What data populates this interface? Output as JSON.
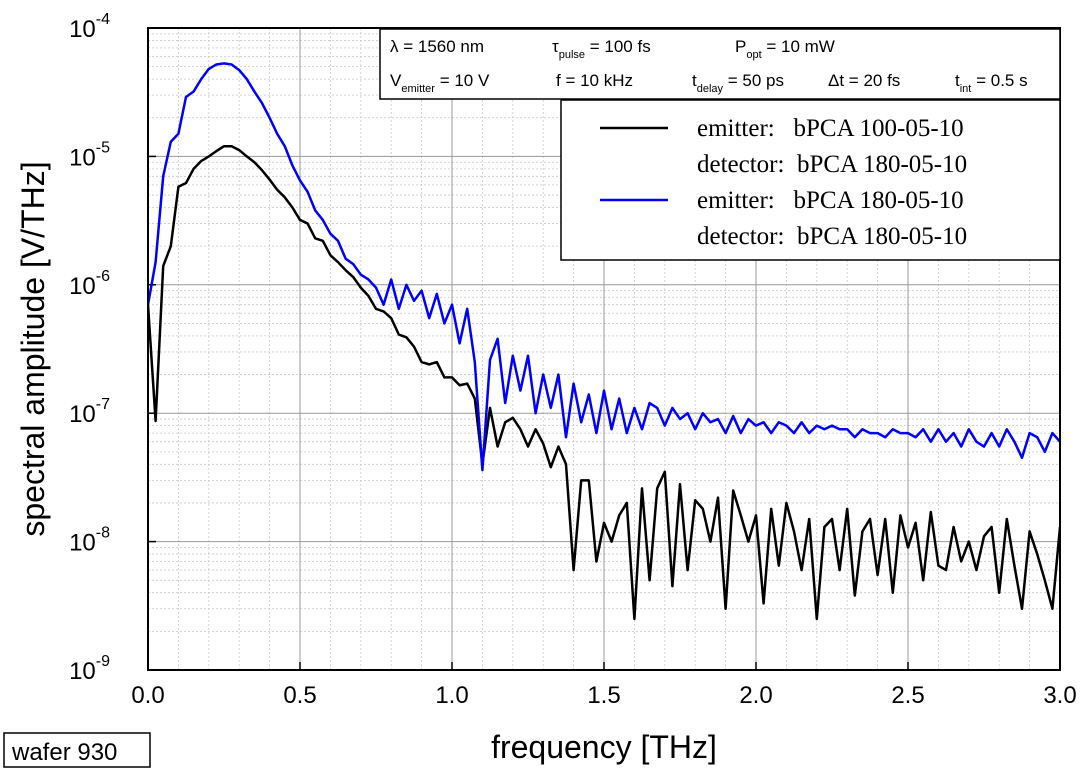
{
  "chart_data": {
    "type": "line",
    "xlabel": "frequency [THz]",
    "ylabel": "spectral amplitude [V/THz]",
    "footnote": "wafer 930",
    "log_y": true,
    "grid": true,
    "legend_position": "upper right",
    "xlim": [
      0,
      3.0
    ],
    "ylim": [
      1e-09,
      0.0001
    ],
    "xticks": [
      {
        "value": 0,
        "label": "0.0"
      },
      0.5,
      {
        "value": 1,
        "label": "1.0"
      },
      1.5,
      {
        "value": 2,
        "label": "2.0"
      },
      2.5,
      {
        "value": 3,
        "label": "3.0"
      }
    ],
    "yticks": [
      {
        "value": 1e-09,
        "label": "10",
        "exponent": "-9"
      },
      {
        "value": 1e-08,
        "label": "10",
        "exponent": "-8"
      },
      {
        "value": 1e-07,
        "label": "10",
        "exponent": "-7"
      },
      {
        "value": 1e-06,
        "label": "10",
        "exponent": "-6"
      },
      {
        "value": 1e-05,
        "label": "10",
        "exponent": "-5"
      },
      {
        "value": 0.0001,
        "label": "10",
        "exponent": "-4"
      }
    ],
    "annotations": [
      {
        "main": "λ = 1560 nm"
      },
      {
        "main": "τ",
        "sub": "pulse",
        "rest": " = 100 fs"
      },
      {
        "main": "P",
        "sub": "opt",
        "rest": " = 10 mW"
      },
      {
        "main": "V",
        "sub": "emitter",
        "rest": " = 10 V"
      },
      {
        "main": "f = 10 kHz"
      },
      {
        "main": "t",
        "sub": "delay",
        "rest": " = 50 ps"
      },
      {
        "main": "Δt = 20 fs"
      },
      {
        "main": "t",
        "sub": "int",
        "rest": " = 0.5 s"
      }
    ],
    "x": [
      0,
      0.025,
      0.05,
      0.075,
      0.1,
      0.125,
      0.15,
      0.175,
      0.2,
      0.225,
      0.25,
      0.275,
      0.3,
      0.325,
      0.35,
      0.375,
      0.4,
      0.425,
      0.45,
      0.475,
      0.5,
      0.525,
      0.55,
      0.575,
      0.6,
      0.625,
      0.65,
      0.675,
      0.7,
      0.725,
      0.75,
      0.775,
      0.8,
      0.825,
      0.85,
      0.875,
      0.9,
      0.925,
      0.95,
      0.975,
      1.0,
      1.025,
      1.05,
      1.075,
      1.1,
      1.125,
      1.15,
      1.175,
      1.2,
      1.225,
      1.25,
      1.275,
      1.3,
      1.325,
      1.35,
      1.375,
      1.4,
      1.425,
      1.45,
      1.475,
      1.5,
      1.525,
      1.55,
      1.575,
      1.6,
      1.625,
      1.65,
      1.675,
      1.7,
      1.725,
      1.75,
      1.775,
      1.8,
      1.825,
      1.85,
      1.875,
      1.9,
      1.925,
      1.95,
      1.975,
      2.0,
      2.025,
      2.05,
      2.075,
      2.1,
      2.125,
      2.15,
      2.175,
      2.2,
      2.225,
      2.25,
      2.275,
      2.3,
      2.325,
      2.35,
      2.375,
      2.4,
      2.425,
      2.45,
      2.475,
      2.5,
      2.525,
      2.55,
      2.575,
      2.6,
      2.625,
      2.65,
      2.675,
      2.7,
      2.725,
      2.75,
      2.775,
      2.8,
      2.825,
      2.85,
      2.875,
      2.9,
      2.925,
      2.95,
      2.975,
      3.0
    ],
    "series": [
      {
        "name": "emitter:   bPCA 100-05-10",
        "detector": "detector:  bPCA 180-05-10",
        "color": "#000000",
        "values": [
          7e-07,
          8.7e-08,
          1.4e-06,
          2e-06,
          5.8e-06,
          6.2e-06,
          8e-06,
          9.2e-06,
          1e-05,
          1.1e-05,
          1.2e-05,
          1.2e-05,
          1.12e-05,
          1e-05,
          9e-06,
          7.8e-06,
          6.6e-06,
          5.5e-06,
          4.8e-06,
          4e-06,
          3.2e-06,
          3e-06,
          2.3e-06,
          2.2e-06,
          1.7e-06,
          1.5e-06,
          1.3e-06,
          1.15e-06,
          9.5e-07,
          8.2e-07,
          6.5e-07,
          6.2e-07,
          5.5e-07,
          4.1e-07,
          3.9e-07,
          3.3e-07,
          2.5e-07,
          2.4e-07,
          2.5e-07,
          1.9e-07,
          1.9e-07,
          1.65e-07,
          1.7e-07,
          1.3e-07,
          4e-08,
          1.1e-07,
          5.5e-08,
          8.5e-08,
          9.2e-08,
          7.5e-08,
          5.5e-08,
          7.5e-08,
          5.8e-08,
          3.8e-08,
          5.5e-08,
          4e-08,
          6e-09,
          3e-08,
          3e-08,
          7e-09,
          1.4e-08,
          1e-08,
          1.6e-08,
          2e-08,
          2.5e-09,
          2.6e-08,
          5e-09,
          2.6e-08,
          3.5e-08,
          4.5e-09,
          2.8e-08,
          6e-09,
          2.1e-08,
          1.8e-08,
          1e-08,
          2.2e-08,
          3e-09,
          2.5e-08,
          1.6e-08,
          1e-08,
          1.6e-08,
          3.3e-09,
          1.8e-08,
          6.5e-09,
          2e-08,
          1.2e-08,
          6e-09,
          1.5e-08,
          2.5e-09,
          1.3e-08,
          1.5e-08,
          6e-09,
          1.8e-08,
          3.8e-09,
          1.2e-08,
          1.5e-08,
          5.5e-09,
          1.5e-08,
          4e-09,
          1.6e-08,
          9e-09,
          1.4e-08,
          5e-09,
          1.7e-08,
          6.5e-09,
          6e-09,
          1.3e-08,
          7e-09,
          1e-08,
          6e-09,
          1.1e-08,
          1.3e-08,
          4e-09,
          1.5e-08,
          6.5e-09,
          3e-09,
          1.2e-08,
          8e-09,
          5e-09,
          3e-09,
          1.3e-08
        ]
      },
      {
        "name": "emitter:   bPCA 180-05-10",
        "detector": "detector:  bPCA 180-05-10",
        "color": "#0000ff",
        "values": [
          7e-07,
          1.5e-06,
          7e-06,
          1.3e-05,
          1.5e-05,
          2.9e-05,
          3.2e-05,
          4e-05,
          4.8e-05,
          5.2e-05,
          5.3e-05,
          5.2e-05,
          4.7e-05,
          4e-05,
          3.2e-05,
          2.6e-05,
          2e-05,
          1.5e-05,
          1.2e-05,
          8.5e-06,
          6.5e-06,
          5.3e-06,
          3.8e-06,
          3.2e-06,
          2.5e-06,
          2.2e-06,
          1.6e-06,
          1.45e-06,
          1.2e-06,
          1.1e-06,
          9.5e-07,
          7e-07,
          1.1e-06,
          6.5e-07,
          1e-06,
          7.5e-07,
          9e-07,
          5.5e-07,
          8.5e-07,
          5e-07,
          7e-07,
          3.5e-07,
          6.5e-07,
          2.5e-07,
          3.6e-08,
          2.6e-07,
          3.8e-07,
          1.2e-07,
          2.8e-07,
          1.5e-07,
          2.8e-07,
          1e-07,
          2e-07,
          1.1e-07,
          2e-07,
          6.5e-08,
          1.7e-07,
          8.5e-08,
          1.4e-07,
          7e-08,
          1.5e-07,
          7.5e-08,
          1.3e-07,
          7e-08,
          1.1e-07,
          7.5e-08,
          1.2e-07,
          1.1e-07,
          8e-08,
          1.1e-07,
          9e-08,
          1e-07,
          7.5e-08,
          1e-07,
          8.5e-08,
          9e-08,
          7e-08,
          9.5e-08,
          7e-08,
          9e-08,
          8e-08,
          8.5e-08,
          7e-08,
          8.5e-08,
          8e-08,
          7e-08,
          8.5e-08,
          7e-08,
          8e-08,
          7.5e-08,
          8e-08,
          7.5e-08,
          7.5e-08,
          6.5e-08,
          7.5e-08,
          7e-08,
          7e-08,
          6.5e-08,
          7.5e-08,
          7e-08,
          7e-08,
          6.5e-08,
          7.5e-08,
          6e-08,
          7.5e-08,
          6e-08,
          7e-08,
          5.5e-08,
          7.5e-08,
          6e-08,
          5.5e-08,
          7e-08,
          5.5e-08,
          7.5e-08,
          6e-08,
          4.5e-08,
          7e-08,
          6.5e-08,
          5e-08,
          7e-08,
          6e-08
        ]
      }
    ]
  }
}
